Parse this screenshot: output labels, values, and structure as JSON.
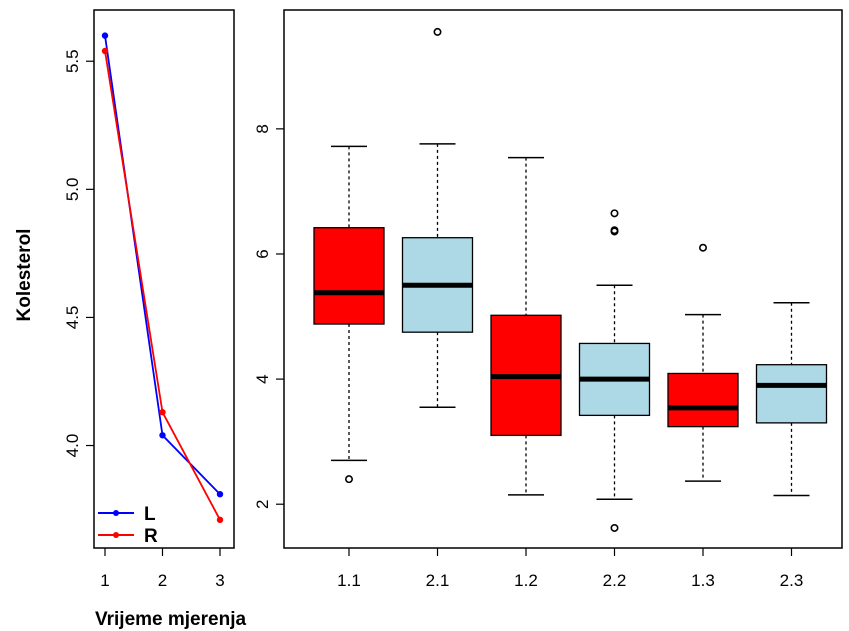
{
  "ylabel": "Kolesterol",
  "xlabel": "Vrijeme mjerenja",
  "chart_data": [
    {
      "type": "line",
      "x": [
        1,
        2,
        3
      ],
      "ylim": [
        3.6,
        5.7
      ],
      "yticks": [
        "4.0",
        "4.5",
        "5.0",
        "5.5"
      ],
      "xticks": [
        "1",
        "2",
        "3"
      ],
      "legend": "bottom-left",
      "series": [
        {
          "name": "L",
          "color": "#0000ff",
          "values": [
            5.6,
            4.04,
            3.81
          ]
        },
        {
          "name": "R",
          "color": "#ff0000",
          "values": [
            5.54,
            4.13,
            3.71
          ]
        }
      ]
    },
    {
      "type": "box",
      "categories": [
        "1.1",
        "2.1",
        "1.2",
        "2.2",
        "1.3",
        "2.3"
      ],
      "ylim": [
        1.3,
        9.9
      ],
      "yticks": [
        "2",
        "4",
        "6",
        "8"
      ],
      "colors": {
        "L": "#ff0000",
        "R": "#add8e6"
      },
      "boxes": [
        {
          "group": "L",
          "min": 2.7,
          "q1": 4.88,
          "median": 5.38,
          "q3": 6.42,
          "max": 7.72,
          "outliers": [
            2.4
          ]
        },
        {
          "group": "R",
          "min": 3.55,
          "q1": 4.75,
          "median": 5.5,
          "q3": 6.26,
          "max": 7.76,
          "outliers": [
            9.55
          ]
        },
        {
          "group": "L",
          "min": 2.15,
          "q1": 3.1,
          "median": 4.04,
          "q3": 5.02,
          "max": 7.54,
          "outliers": []
        },
        {
          "group": "R",
          "min": 2.08,
          "q1": 3.42,
          "median": 4.0,
          "q3": 4.57,
          "max": 5.5,
          "outliers": [
            6.36,
            6.38,
            6.65,
            1.62
          ]
        },
        {
          "group": "L",
          "min": 2.37,
          "q1": 3.24,
          "median": 3.54,
          "q3": 4.09,
          "max": 5.03,
          "outliers": [
            6.1
          ]
        },
        {
          "group": "R",
          "min": 2.14,
          "q1": 3.3,
          "median": 3.9,
          "q3": 4.23,
          "max": 5.22,
          "outliers": []
        }
      ]
    }
  ]
}
